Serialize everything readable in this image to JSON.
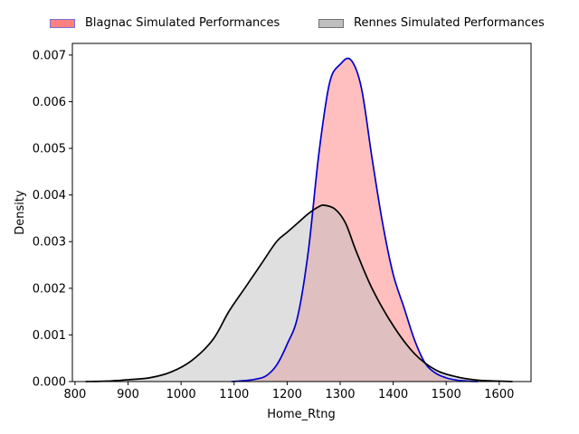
{
  "chart_data": {
    "type": "area",
    "title": "",
    "xlabel": "Home_Rtng",
    "ylabel": "Density",
    "xlim": [
      795,
      1660
    ],
    "ylim": [
      0,
      0.00725
    ],
    "x_ticks": [
      "800",
      "900",
      "1000",
      "1100",
      "1200",
      "1300",
      "1400",
      "1500",
      "1600"
    ],
    "x_tick_values": [
      800,
      900,
      1000,
      1100,
      1200,
      1300,
      1400,
      1500,
      1600
    ],
    "y_ticks": [
      "0.000",
      "0.001",
      "0.002",
      "0.003",
      "0.004",
      "0.005",
      "0.006",
      "0.007"
    ],
    "y_tick_values": [
      0,
      0.001,
      0.002,
      0.003,
      0.004,
      0.005,
      0.006,
      0.007
    ],
    "grid": false,
    "legend_position": "top-center-outside",
    "series": [
      {
        "name": "Blagnac Simulated Performances",
        "fill_color": "#ff8080",
        "line_color": "#0000cc",
        "legend_edge_color": "#7b6fd6",
        "x": [
          1095,
          1120,
          1140,
          1160,
          1180,
          1200,
          1220,
          1240,
          1260,
          1280,
          1300,
          1320,
          1340,
          1360,
          1380,
          1400,
          1420,
          1440,
          1460,
          1480,
          1500,
          1520,
          1540,
          1560
        ],
        "y": [
          0,
          2e-05,
          5e-05,
          0.00012,
          0.00035,
          0.0008,
          0.0014,
          0.0028,
          0.0049,
          0.0064,
          0.0068,
          0.0069,
          0.0063,
          0.0048,
          0.0034,
          0.0023,
          0.0016,
          0.0009,
          0.0004,
          0.00018,
          8e-05,
          3e-05,
          1e-05,
          0
        ]
      },
      {
        "name": "Rennes Simulated Performances",
        "fill_color": "#bfbfbf",
        "line_color": "#000000",
        "legend_edge_color": "#707070",
        "x": [
          820,
          860,
          900,
          940,
          980,
          1020,
          1060,
          1090,
          1120,
          1150,
          1180,
          1200,
          1220,
          1240,
          1260,
          1270,
          1290,
          1310,
          1330,
          1360,
          1400,
          1440,
          1480,
          1520,
          1560,
          1600,
          1625
        ],
        "y": [
          0,
          1e-05,
          4e-05,
          8e-05,
          0.0002,
          0.00045,
          0.0009,
          0.0015,
          0.002,
          0.0025,
          0.003,
          0.0032,
          0.0034,
          0.0036,
          0.00375,
          0.00378,
          0.0037,
          0.0034,
          0.0028,
          0.002,
          0.0012,
          0.0006,
          0.00025,
          0.0001,
          3e-05,
          1e-05,
          0
        ]
      }
    ]
  }
}
